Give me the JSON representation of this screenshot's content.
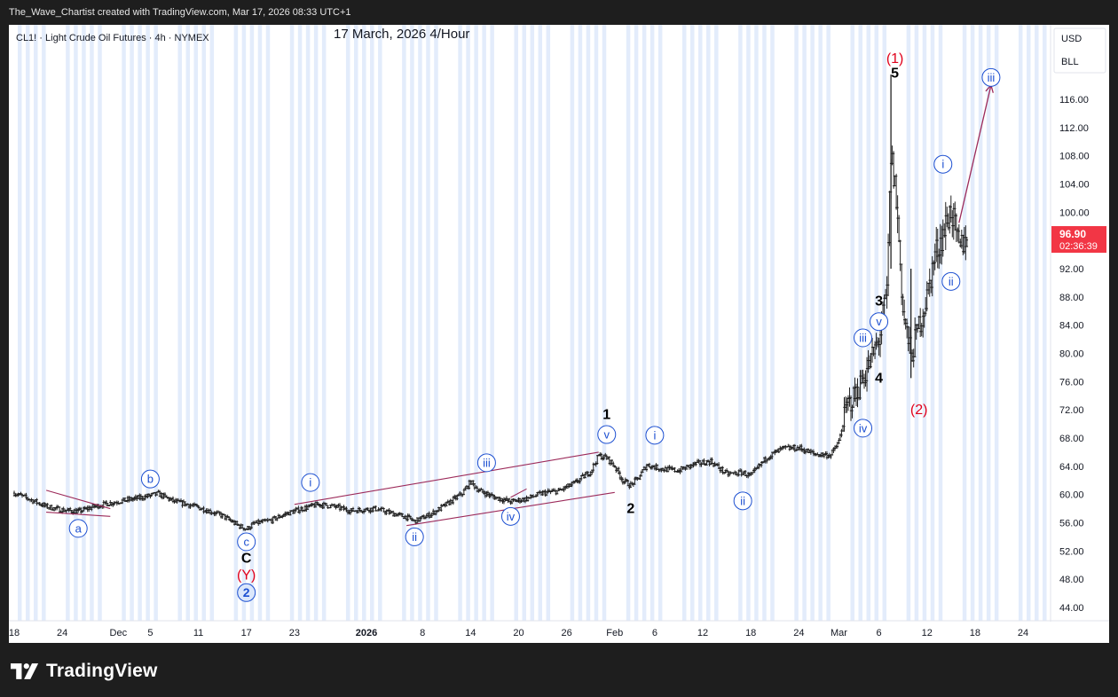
{
  "header": {
    "caption": "The_Wave_Chartist created with TradingView.com, Mar 17, 2026 08:33 UTC+1"
  },
  "footer": {
    "brand": "TradingView"
  },
  "chart_data": {
    "type": "candlestick",
    "symbol_label": "CL1! · Light Crude Oil Futures · 4h · NYMEX",
    "annotation_title": "17 March, 2026 4/Hour",
    "currency": "USD",
    "unit": "BLL",
    "last_price": "96.90",
    "countdown": "02:36:39",
    "ylim": [
      43.0,
      122.0
    ],
    "y_ticks": [
      "116.00",
      "112.00",
      "108.00",
      "104.00",
      "100.00",
      "92.00",
      "88.00",
      "84.00",
      "80.00",
      "76.00",
      "72.00",
      "68.00",
      "64.00",
      "60.00",
      "56.00",
      "52.00",
      "48.00",
      "44.00"
    ],
    "x_ticks": [
      {
        "label": "18",
        "date": "2025-11-18",
        "bold": false
      },
      {
        "label": "24",
        "date": "2025-11-24",
        "bold": false
      },
      {
        "label": "Dec",
        "date": "2025-12-01",
        "bold": false
      },
      {
        "label": "5",
        "date": "2025-12-05",
        "bold": false
      },
      {
        "label": "11",
        "date": "2025-12-11",
        "bold": false
      },
      {
        "label": "17",
        "date": "2025-12-17",
        "bold": false
      },
      {
        "label": "23",
        "date": "2025-12-23",
        "bold": false
      },
      {
        "label": "2026",
        "date": "2026-01-01",
        "bold": true
      },
      {
        "label": "8",
        "date": "2026-01-08",
        "bold": false
      },
      {
        "label": "14",
        "date": "2026-01-14",
        "bold": false
      },
      {
        "label": "20",
        "date": "2026-01-20",
        "bold": false
      },
      {
        "label": "26",
        "date": "2026-01-26",
        "bold": false
      },
      {
        "label": "Feb",
        "date": "2026-02-01",
        "bold": false
      },
      {
        "label": "6",
        "date": "2026-02-06",
        "bold": false
      },
      {
        "label": "12",
        "date": "2026-02-12",
        "bold": false
      },
      {
        "label": "18",
        "date": "2026-02-18",
        "bold": false
      },
      {
        "label": "24",
        "date": "2026-02-24",
        "bold": false
      },
      {
        "label": "Mar",
        "date": "2026-03-01",
        "bold": false
      },
      {
        "label": "6",
        "date": "2026-03-06",
        "bold": false
      },
      {
        "label": "12",
        "date": "2026-03-12",
        "bold": false
      },
      {
        "label": "18",
        "date": "2026-03-18",
        "bold": false
      },
      {
        "label": "24",
        "date": "2026-03-24",
        "bold": false
      }
    ],
    "price_path": [
      [
        "2025-11-18",
        60.2
      ],
      [
        "2025-11-20",
        59.3
      ],
      [
        "2025-11-22",
        58.3
      ],
      [
        "2025-11-24",
        57.8
      ],
      [
        "2025-11-26",
        57.6
      ],
      [
        "2025-11-28",
        58.3
      ],
      [
        "2025-11-30",
        58.8
      ],
      [
        "2025-12-02",
        59.2
      ],
      [
        "2025-12-04",
        59.6
      ],
      [
        "2025-12-06",
        60.1
      ],
      [
        "2025-12-08",
        59.0
      ],
      [
        "2025-12-10",
        58.5
      ],
      [
        "2025-12-12",
        57.8
      ],
      [
        "2025-12-14",
        57.0
      ],
      [
        "2025-12-16",
        55.6
      ],
      [
        "2025-12-17",
        55.1
      ],
      [
        "2025-12-18",
        55.9
      ],
      [
        "2025-12-20",
        56.3
      ],
      [
        "2025-12-22",
        57.3
      ],
      [
        "2025-12-24",
        58.0
      ],
      [
        "2025-12-26",
        58.6
      ],
      [
        "2025-12-28",
        58.3
      ],
      [
        "2025-12-30",
        57.7
      ],
      [
        "2026-01-02",
        58.0
      ],
      [
        "2026-01-04",
        57.4
      ],
      [
        "2026-01-06",
        56.8
      ],
      [
        "2026-01-07",
        56.2
      ],
      [
        "2026-01-09",
        57.2
      ],
      [
        "2026-01-11",
        58.6
      ],
      [
        "2026-01-13",
        60.2
      ],
      [
        "2026-01-14",
        61.8
      ],
      [
        "2026-01-15",
        60.6
      ],
      [
        "2026-01-17",
        59.6
      ],
      [
        "2026-01-19",
        59.0
      ],
      [
        "2026-01-21",
        59.4
      ],
      [
        "2026-01-23",
        60.2
      ],
      [
        "2026-01-25",
        60.5
      ],
      [
        "2026-01-27",
        61.6
      ],
      [
        "2026-01-29",
        63.3
      ],
      [
        "2026-01-30",
        65.5
      ],
      [
        "2026-01-31",
        65.2
      ],
      [
        "2026-02-01",
        64.0
      ],
      [
        "2026-02-02",
        62.0
      ],
      [
        "2026-02-03",
        61.3
      ],
      [
        "2026-02-04",
        62.4
      ],
      [
        "2026-02-05",
        64.2
      ],
      [
        "2026-02-07",
        63.6
      ],
      [
        "2026-02-09",
        63.4
      ],
      [
        "2026-02-11",
        64.3
      ],
      [
        "2026-02-13",
        64.7
      ],
      [
        "2026-02-15",
        62.9
      ],
      [
        "2026-02-17",
        63.1
      ],
      [
        "2026-02-18",
        62.6
      ],
      [
        "2026-02-20",
        65.3
      ],
      [
        "2026-02-22",
        66.5
      ],
      [
        "2026-02-24",
        66.6
      ],
      [
        "2026-02-26",
        65.7
      ],
      [
        "2026-02-28",
        65.6
      ],
      [
        "2026-03-01",
        67.5
      ],
      [
        "2026-03-02",
        72.5
      ],
      [
        "2026-03-03",
        74.0
      ],
      [
        "2026-03-04",
        76.5
      ],
      [
        "2026-03-05",
        79.0
      ],
      [
        "2026-03-06",
        82.0
      ],
      [
        "2026-03-07",
        88.5
      ],
      [
        "2026-03-07T12:00",
        108.0
      ],
      [
        "2026-03-08",
        104.0
      ],
      [
        "2026-03-08T12:00",
        96.0
      ],
      [
        "2026-03-09",
        86.0
      ],
      [
        "2026-03-10",
        79.5
      ],
      [
        "2026-03-11",
        84.0
      ],
      [
        "2026-03-12",
        88.0
      ],
      [
        "2026-03-13",
        94.0
      ],
      [
        "2026-03-14",
        97.0
      ],
      [
        "2026-03-15",
        100.5
      ],
      [
        "2026-03-16",
        94.5
      ],
      [
        "2026-03-17",
        97.0
      ]
    ],
    "wave_labels": [
      {
        "text": "a",
        "date": "2025-11-26",
        "y": 55.2,
        "style": "circle-blue"
      },
      {
        "text": "b",
        "date": "2025-12-05",
        "y": 62.2,
        "style": "circle-blue"
      },
      {
        "text": "c",
        "date": "2025-12-17",
        "y": 53.3,
        "style": "circle-blue"
      },
      {
        "text": "C",
        "date": "2025-12-17",
        "y": 51.0,
        "style": "black"
      },
      {
        "text": "(Y)",
        "date": "2025-12-17",
        "y": 48.6,
        "style": "red"
      },
      {
        "text": "2",
        "date": "2025-12-17",
        "y": 46.1,
        "style": "circle-blue-bold"
      },
      {
        "text": "i",
        "date": "2025-12-25",
        "y": 61.7,
        "style": "circle-blue"
      },
      {
        "text": "ii",
        "date": "2026-01-07",
        "y": 54.0,
        "style": "circle-blue"
      },
      {
        "text": "iii",
        "date": "2026-01-16",
        "y": 64.5,
        "style": "circle-blue"
      },
      {
        "text": "iv",
        "date": "2026-01-19",
        "y": 56.9,
        "style": "circle-blue"
      },
      {
        "text": "v",
        "date": "2026-01-31",
        "y": 68.5,
        "style": "circle-blue"
      },
      {
        "text": "1",
        "date": "2026-01-31",
        "y": 71.3,
        "style": "black"
      },
      {
        "text": "2",
        "date": "2026-02-03",
        "y": 58.0,
        "style": "black"
      },
      {
        "text": "i",
        "date": "2026-02-06",
        "y": 68.4,
        "style": "circle-blue"
      },
      {
        "text": "ii",
        "date": "2026-02-17",
        "y": 59.1,
        "style": "circle-blue"
      },
      {
        "text": "iv",
        "date": "2026-03-04",
        "y": 69.4,
        "style": "circle-blue"
      },
      {
        "text": "iii",
        "date": "2026-03-04",
        "y": 82.2,
        "style": "circle-blue"
      },
      {
        "text": "4",
        "date": "2026-03-06",
        "y": 76.5,
        "style": "black"
      },
      {
        "text": "v",
        "date": "2026-03-06",
        "y": 84.5,
        "style": "circle-blue"
      },
      {
        "text": "3",
        "date": "2026-03-06",
        "y": 87.4,
        "style": "black"
      },
      {
        "text": "5",
        "date": "2026-03-08",
        "y": 119.7,
        "style": "black"
      },
      {
        "text": "(1)",
        "date": "2026-03-08",
        "y": 121.8,
        "style": "red"
      },
      {
        "text": "(2)",
        "date": "2026-03-11",
        "y": 72.0,
        "style": "red"
      },
      {
        "text": "i",
        "date": "2026-03-14",
        "y": 106.8,
        "style": "circle-blue"
      },
      {
        "text": "ii",
        "date": "2026-03-15",
        "y": 90.2,
        "style": "circle-blue"
      },
      {
        "text": "iii",
        "date": "2026-03-20",
        "y": 119.1,
        "style": "circle-blue"
      }
    ],
    "trend_lines": [
      {
        "from": [
          "2025-11-22",
          60.6
        ],
        "to": [
          "2025-11-30",
          58.0
        ]
      },
      {
        "from": [
          "2025-11-22",
          57.5
        ],
        "to": [
          "2025-11-30",
          56.9
        ]
      },
      {
        "from": [
          "2025-12-23",
          58.6
        ],
        "to": [
          "2026-01-30",
          66.0
        ]
      },
      {
        "from": [
          "2026-01-06",
          55.6
        ],
        "to": [
          "2026-02-01",
          60.3
        ]
      },
      {
        "from": [
          "2026-01-19",
          59.6
        ],
        "to": [
          "2026-01-21",
          60.8
        ]
      }
    ],
    "projection_arrow": {
      "from": [
        "2026-03-16",
        98.5
      ],
      "to": [
        "2026-03-20",
        118.0
      ]
    },
    "colors": {
      "candle": "#222222",
      "wave_blue": "#1c4fd1",
      "wave_red": "#e0001b",
      "trend_line": "#9c2a5a",
      "price_tag": "#f23645",
      "band": "#e3ecfb"
    }
  }
}
